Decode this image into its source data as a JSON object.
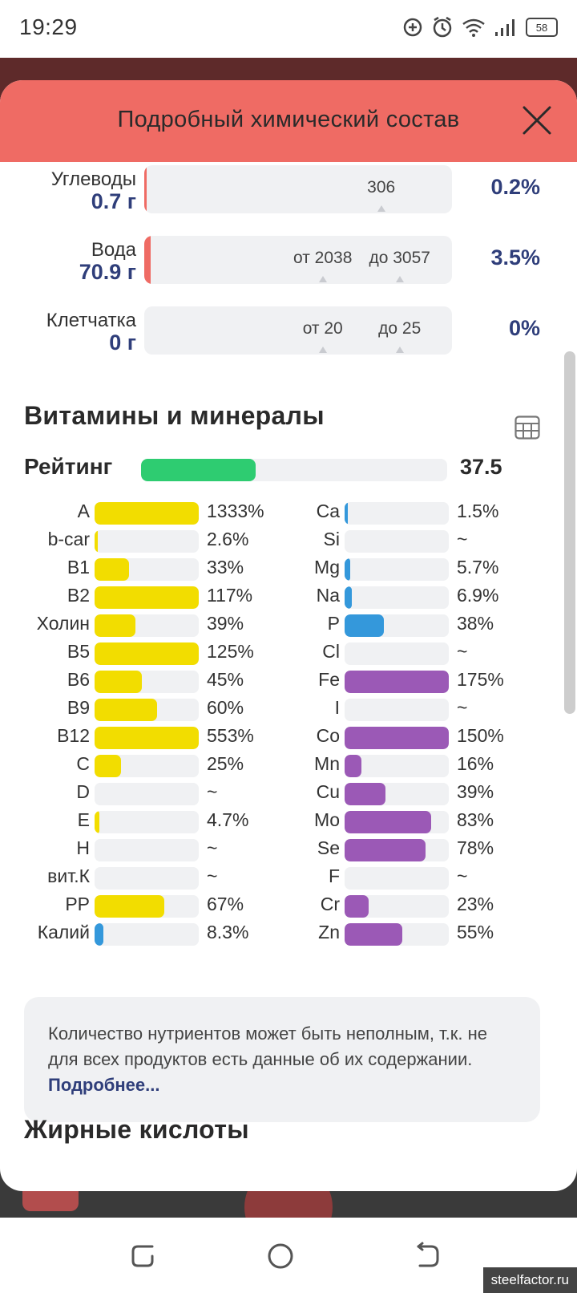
{
  "status_bar": {
    "time": "19:29",
    "battery": "58"
  },
  "modal": {
    "title": "Подробный химический состав"
  },
  "macros": [
    {
      "name": "Углеводы",
      "value": "0.7 г",
      "percent": "0.2%",
      "fill_fraction": 0.002,
      "markers": [
        {
          "label": "306",
          "pos": 0.77
        }
      ]
    },
    {
      "name": "Вода",
      "value": "70.9 г",
      "percent": "3.5%",
      "fill_fraction": 0.02,
      "markers": [
        {
          "label": "от 2038",
          "pos": 0.58
        },
        {
          "label": "до 3057",
          "pos": 0.83
        }
      ]
    },
    {
      "name": "Клетчатка",
      "value": "0 г",
      "percent": "0%",
      "fill_fraction": 0,
      "markers": [
        {
          "label": "от 20",
          "pos": 0.58
        },
        {
          "label": "до 25",
          "pos": 0.83
        }
      ]
    }
  ],
  "vitamins_section": {
    "title": "Витамины и минералы",
    "rating_label": "Рейтинг",
    "rating_value": "37.5",
    "rating_fraction": 0.375
  },
  "colors": {
    "yellow": "#f2dd00",
    "blue": "#3498db",
    "purple": "#9b59b6",
    "header": "#ef6b64",
    "rating": "#2ecc71"
  },
  "vitamins": [
    {
      "name": "A",
      "value": "1333%",
      "fill": 1.0,
      "color": "yellow"
    },
    {
      "name": "b-car",
      "value": "2.6%",
      "fill": 0.03,
      "color": "yellow"
    },
    {
      "name": "B1",
      "value": "33%",
      "fill": 0.33,
      "color": "yellow"
    },
    {
      "name": "B2",
      "value": "117%",
      "fill": 1.0,
      "color": "yellow"
    },
    {
      "name": "Холин",
      "value": "39%",
      "fill": 0.39,
      "color": "yellow"
    },
    {
      "name": "B5",
      "value": "125%",
      "fill": 1.0,
      "color": "yellow"
    },
    {
      "name": "B6",
      "value": "45%",
      "fill": 0.45,
      "color": "yellow"
    },
    {
      "name": "B9",
      "value": "60%",
      "fill": 0.6,
      "color": "yellow"
    },
    {
      "name": "B12",
      "value": "553%",
      "fill": 1.0,
      "color": "yellow"
    },
    {
      "name": "C",
      "value": "25%",
      "fill": 0.25,
      "color": "yellow"
    },
    {
      "name": "D",
      "value": "~",
      "fill": 0,
      "color": "yellow"
    },
    {
      "name": "E",
      "value": "4.7%",
      "fill": 0.047,
      "color": "yellow"
    },
    {
      "name": "H",
      "value": "~",
      "fill": 0,
      "color": "yellow"
    },
    {
      "name": "вит.К",
      "value": "~",
      "fill": 0,
      "color": "yellow"
    },
    {
      "name": "PP",
      "value": "67%",
      "fill": 0.67,
      "color": "yellow"
    },
    {
      "name": "Калий",
      "value": "8.3%",
      "fill": 0.083,
      "color": "blue"
    }
  ],
  "minerals": [
    {
      "name": "Ca",
      "value": "1.5%",
      "fill": 0.015,
      "color": "blue"
    },
    {
      "name": "Si",
      "value": "~",
      "fill": 0,
      "color": "blue"
    },
    {
      "name": "Mg",
      "value": "5.7%",
      "fill": 0.057,
      "color": "blue"
    },
    {
      "name": "Na",
      "value": "6.9%",
      "fill": 0.069,
      "color": "blue"
    },
    {
      "name": "P",
      "value": "38%",
      "fill": 0.38,
      "color": "blue"
    },
    {
      "name": "Cl",
      "value": "~",
      "fill": 0,
      "color": "blue"
    },
    {
      "name": "Fe",
      "value": "175%",
      "fill": 1.0,
      "color": "purple"
    },
    {
      "name": "I",
      "value": "~",
      "fill": 0,
      "color": "purple"
    },
    {
      "name": "Co",
      "value": "150%",
      "fill": 1.0,
      "color": "purple"
    },
    {
      "name": "Mn",
      "value": "16%",
      "fill": 0.16,
      "color": "purple"
    },
    {
      "name": "Cu",
      "value": "39%",
      "fill": 0.39,
      "color": "purple"
    },
    {
      "name": "Mo",
      "value": "83%",
      "fill": 0.83,
      "color": "purple"
    },
    {
      "name": "Se",
      "value": "78%",
      "fill": 0.78,
      "color": "purple"
    },
    {
      "name": "F",
      "value": "~",
      "fill": 0,
      "color": "purple"
    },
    {
      "name": "Cr",
      "value": "23%",
      "fill": 0.23,
      "color": "purple"
    },
    {
      "name": "Zn",
      "value": "55%",
      "fill": 0.55,
      "color": "purple"
    }
  ],
  "note": {
    "text": "Количество нутриентов может быть неполным, т.к. не для всех продуктов есть данные об их содержании. ",
    "link": "Подробнее..."
  },
  "fatty_acids": {
    "title": "Жирные кислоты"
  },
  "watermark": "steelfactor.ru"
}
